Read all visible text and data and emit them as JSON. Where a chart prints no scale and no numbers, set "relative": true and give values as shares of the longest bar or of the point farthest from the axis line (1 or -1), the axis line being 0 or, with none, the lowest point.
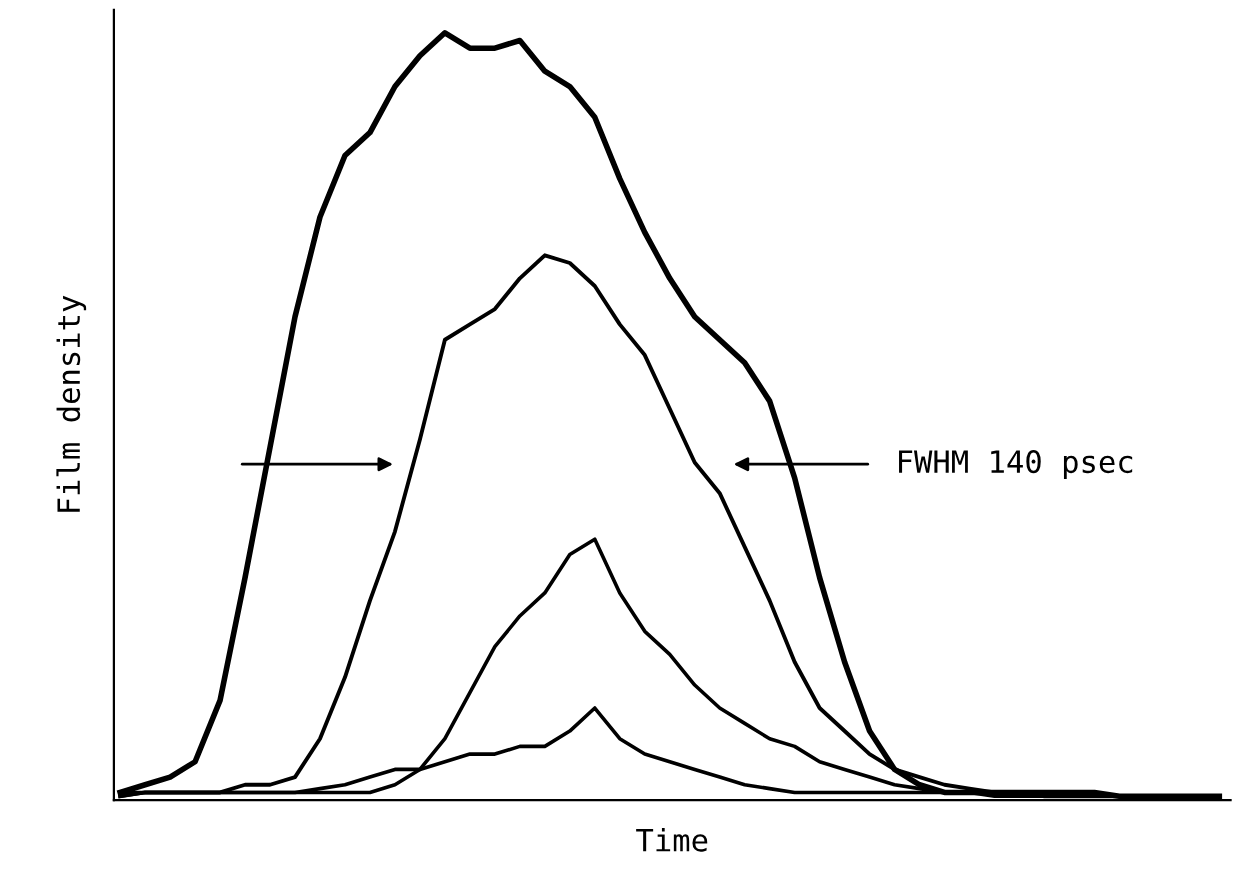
{
  "chart_data": {
    "type": "line",
    "relative": true,
    "xlabel": "Time",
    "ylabel": "Film density",
    "tick_labels": false,
    "grid": false,
    "legend": false,
    "annotations": [
      "FWHM 140 psec"
    ],
    "categories": [
      null,
      null,
      null,
      null,
      null,
      null,
      null,
      null,
      null,
      null,
      null,
      null,
      null,
      null,
      null,
      null,
      null,
      null,
      null,
      null,
      null,
      null,
      null,
      null,
      null,
      null,
      null,
      null,
      null,
      null,
      null,
      null,
      null,
      null,
      null,
      null,
      null,
      null,
      null,
      null,
      null,
      null,
      null,
      null,
      null
    ],
    "series": [
      {
        "color": "#000000",
        "values": [
          0.01,
          0.02,
          0.03,
          0.05,
          0.13,
          0.29,
          0.46,
          0.63,
          0.76,
          0.84,
          0.87,
          0.93,
          0.97,
          1.0,
          0.98,
          0.98,
          0.99,
          0.95,
          0.93,
          0.89,
          0.81,
          0.74,
          0.68,
          0.63,
          0.6,
          0.57,
          0.52,
          0.42,
          0.29,
          0.18,
          0.09,
          0.04,
          0.02,
          0.01,
          0.01,
          0.01,
          0.01,
          0.01,
          0.01,
          0.01,
          0.005,
          0.005,
          0.005,
          0.005,
          0.005
        ]
      },
      {
        "color": "#000000",
        "values": [
          0.005,
          0.01,
          0.01,
          0.01,
          0.01,
          0.02,
          0.02,
          0.03,
          0.08,
          0.16,
          0.26,
          0.35,
          0.47,
          0.6,
          0.62,
          0.64,
          0.68,
          0.71,
          0.7,
          0.67,
          0.62,
          0.58,
          0.51,
          0.44,
          0.4,
          0.33,
          0.26,
          0.18,
          0.12,
          0.09,
          0.06,
          0.04,
          0.03,
          0.02,
          0.015,
          0.01,
          0.01,
          0.005,
          0.005,
          0.005,
          0.005,
          0.005,
          0.005,
          0.005,
          0.005
        ]
      },
      {
        "color": "#000000",
        "values": [
          0.005,
          0.01,
          0.01,
          0.01,
          0.01,
          0.01,
          0.01,
          0.01,
          0.01,
          0.01,
          0.01,
          0.02,
          0.04,
          0.08,
          0.14,
          0.2,
          0.24,
          0.27,
          0.32,
          0.34,
          0.27,
          0.22,
          0.19,
          0.15,
          0.12,
          0.1,
          0.08,
          0.07,
          0.05,
          0.04,
          0.03,
          0.02,
          0.015,
          0.01,
          0.01,
          0.01,
          0.01,
          0.005,
          0.005,
          0.005,
          0.005,
          0.005,
          0.005,
          0.005,
          0.005
        ]
      },
      {
        "color": "#000000",
        "values": [
          0.01,
          0.01,
          0.01,
          0.01,
          0.01,
          0.01,
          0.01,
          0.01,
          0.015,
          0.02,
          0.03,
          0.04,
          0.04,
          0.05,
          0.06,
          0.06,
          0.07,
          0.07,
          0.09,
          0.12,
          0.08,
          0.06,
          0.05,
          0.04,
          0.03,
          0.02,
          0.015,
          0.01,
          0.01,
          0.01,
          0.01,
          0.01,
          0.01,
          0.01,
          0.01,
          0.005,
          0.005,
          0.005,
          0.005,
          0.005,
          0.005,
          0.005,
          0.005,
          0.005,
          0.005
        ]
      }
    ]
  }
}
